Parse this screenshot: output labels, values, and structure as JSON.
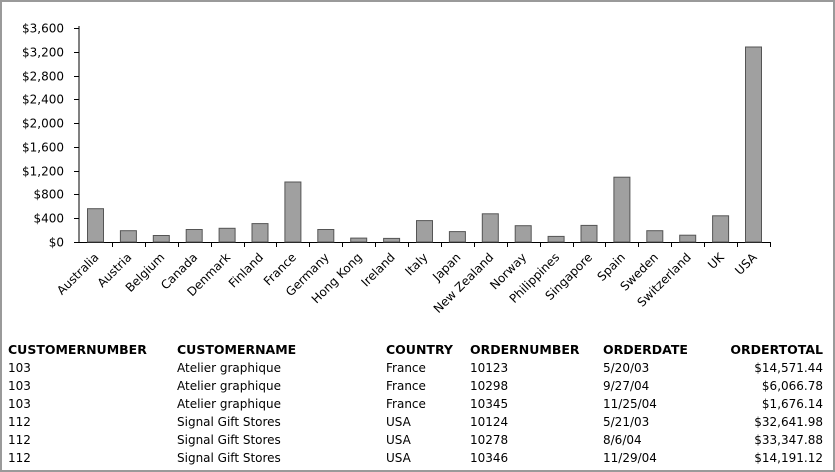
{
  "chart_data": {
    "type": "bar",
    "categories": [
      "Australia",
      "Austria",
      "Belgium",
      "Canada",
      "Denmark",
      "Finland",
      "France",
      "Germany",
      "Hong Kong",
      "Ireland",
      "Italy",
      "Japan",
      "New Zealand",
      "Norway",
      "Philippines",
      "Singapore",
      "Spain",
      "Sweden",
      "Switzerland",
      "UK",
      "USA"
    ],
    "values": [
      560,
      190,
      110,
      210,
      230,
      310,
      1010,
      210,
      65,
      60,
      360,
      175,
      475,
      275,
      95,
      280,
      1090,
      190,
      115,
      440,
      3280
    ],
    "ylim": [
      0,
      3600
    ],
    "yticks": [
      "$0",
      "$400",
      "$800",
      "$1,200",
      "$1,600",
      "$2,000",
      "$2,400",
      "$2,800",
      "$3,200",
      "$3,600"
    ],
    "tick_step": 400,
    "title": "",
    "xlabel": "",
    "ylabel": "",
    "grid": false,
    "bar_color": "#a0a0a0"
  },
  "table": {
    "headers": [
      "CUSTOMERNUMBER",
      "CUSTOMERNAME",
      "COUNTRY",
      "ORDERNUMBER",
      "ORDERDATE",
      "ORDERTOTAL"
    ],
    "rows": [
      [
        "103",
        "Atelier graphique",
        "France",
        "10123",
        "5/20/03",
        "$14,571.44"
      ],
      [
        "103",
        "Atelier graphique",
        "France",
        "10298",
        "9/27/04",
        "$6,066.78"
      ],
      [
        "103",
        "Atelier graphique",
        "France",
        "10345",
        "11/25/04",
        "$1,676.14"
      ],
      [
        "112",
        "Signal Gift Stores",
        "USA",
        "10124",
        "5/21/03",
        "$32,641.98"
      ],
      [
        "112",
        "Signal Gift Stores",
        "USA",
        "10278",
        "8/6/04",
        "$33,347.88"
      ],
      [
        "112",
        "Signal Gift Stores",
        "USA",
        "10346",
        "11/29/04",
        "$14,191.12"
      ]
    ]
  }
}
